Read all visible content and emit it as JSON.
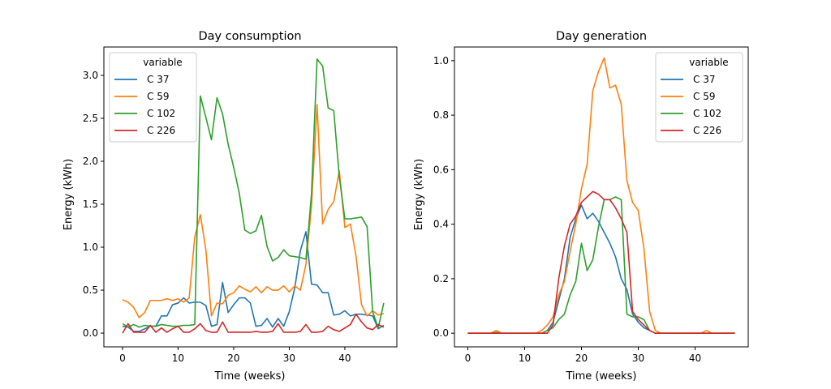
{
  "chart_data": [
    {
      "type": "line",
      "title": "Day consumption",
      "xlabel": "Time (weeks)",
      "ylabel": "Energy (kWh)",
      "xlim": [
        -3.35,
        49.35
      ],
      "ylim": [
        -0.16,
        3.33
      ],
      "xticks": [
        0,
        10,
        20,
        30,
        40
      ],
      "yticks": [
        0.0,
        0.5,
        1.0,
        1.5,
        2.0,
        2.5,
        3.0
      ],
      "ytick_format": 1,
      "legend": {
        "title": "variable",
        "placement": "upper left"
      },
      "grid": false,
      "x": [
        0,
        1,
        2,
        3,
        4,
        5,
        6,
        7,
        8,
        9,
        10,
        11,
        12,
        13,
        14,
        15,
        16,
        17,
        18,
        19,
        20,
        21,
        22,
        23,
        24,
        25,
        26,
        27,
        28,
        29,
        30,
        31,
        32,
        33,
        34,
        35,
        36,
        37,
        38,
        39,
        40,
        41,
        42,
        43,
        44,
        45,
        46,
        47
      ],
      "series": [
        {
          "name": "C 37",
          "color": "#1f77b4",
          "values": [
            0.08,
            0.07,
            0.02,
            0.02,
            0.05,
            0.08,
            0.08,
            0.2,
            0.2,
            0.33,
            0.35,
            0.41,
            0.35,
            0.36,
            0.36,
            0.32,
            0.08,
            0.1,
            0.59,
            0.24,
            0.33,
            0.41,
            0.41,
            0.35,
            0.08,
            0.09,
            0.17,
            0.07,
            0.17,
            0.08,
            0.25,
            0.53,
            0.96,
            1.18,
            0.57,
            0.56,
            0.47,
            0.47,
            0.21,
            0.22,
            0.26,
            0.2,
            0.22,
            0.22,
            0.21,
            0.2,
            0.05,
            0.09
          ]
        },
        {
          "name": "C 59",
          "color": "#ff7f0e",
          "values": [
            0.39,
            0.36,
            0.3,
            0.18,
            0.24,
            0.38,
            0.38,
            0.38,
            0.4,
            0.38,
            0.4,
            0.36,
            0.41,
            1.12,
            1.38,
            0.97,
            0.2,
            0.35,
            0.34,
            0.44,
            0.47,
            0.55,
            0.51,
            0.48,
            0.54,
            0.47,
            0.54,
            0.5,
            0.5,
            0.55,
            0.48,
            0.55,
            0.5,
            0.8,
            1.48,
            2.66,
            1.27,
            1.44,
            1.53,
            1.89,
            1.23,
            1.27,
            0.9,
            0.33,
            0.2,
            0.26,
            0.21,
            0.23
          ]
        },
        {
          "name": "C 102",
          "color": "#2ca02c",
          "values": [
            0.11,
            0.07,
            0.1,
            0.07,
            0.09,
            0.08,
            0.08,
            0.1,
            0.09,
            0.08,
            0.08,
            0.09,
            0.09,
            0.1,
            2.76,
            2.51,
            2.25,
            2.74,
            2.55,
            2.2,
            1.93,
            1.63,
            1.2,
            1.16,
            1.19,
            1.37,
            1.01,
            0.84,
            0.88,
            0.97,
            0.9,
            0.89,
            0.88,
            0.86,
            1.62,
            3.19,
            3.11,
            2.62,
            2.59,
            1.82,
            1.33,
            1.33,
            1.34,
            1.35,
            1.24,
            0.25,
            0.06,
            0.35
          ]
        },
        {
          "name": "C 226",
          "color": "#d62728",
          "values": [
            0.0,
            0.11,
            0.01,
            0.01,
            0.01,
            0.09,
            0.01,
            0.06,
            0.01,
            0.05,
            0.08,
            0.01,
            0.01,
            0.05,
            0.11,
            0.03,
            0.01,
            0.01,
            0.13,
            0.01,
            0.01,
            0.01,
            0.01,
            0.01,
            0.02,
            0.01,
            0.01,
            0.02,
            0.11,
            0.01,
            0.01,
            0.01,
            0.02,
            0.1,
            0.01,
            0.01,
            0.02,
            0.08,
            0.04,
            0.02,
            0.06,
            0.1,
            0.22,
            0.13,
            0.06,
            0.04,
            0.1,
            0.07
          ]
        }
      ]
    },
    {
      "type": "line",
      "title": "Day generation",
      "xlabel": "Time (weeks)",
      "ylabel": "Energy (kWh)",
      "xlim": [
        -2.35,
        49.35
      ],
      "ylim": [
        -0.05,
        1.05
      ],
      "xticks": [
        0,
        10,
        20,
        30,
        40
      ],
      "yticks": [
        0.0,
        0.2,
        0.4,
        0.6,
        0.8,
        1.0
      ],
      "ytick_format": 1,
      "legend": {
        "title": "variable",
        "placement": "upper right"
      },
      "grid": false,
      "x": [
        0,
        1,
        2,
        3,
        4,
        5,
        6,
        7,
        8,
        9,
        10,
        11,
        12,
        13,
        14,
        15,
        16,
        17,
        18,
        19,
        20,
        21,
        22,
        23,
        24,
        25,
        26,
        27,
        28,
        29,
        30,
        31,
        32,
        33,
        34,
        35,
        36,
        37,
        38,
        39,
        40,
        41,
        42,
        43,
        44,
        45,
        46,
        47
      ],
      "series": [
        {
          "name": "C 37",
          "color": "#1f77b4",
          "values": [
            0,
            0,
            0,
            0,
            0,
            0.003,
            0,
            0,
            0,
            0,
            0,
            0,
            0,
            0,
            0.01,
            0.04,
            0.12,
            0.2,
            0.35,
            0.42,
            0.47,
            0.42,
            0.44,
            0.41,
            0.37,
            0.33,
            0.28,
            0.2,
            0.16,
            0.07,
            0.04,
            0.02,
            0.01,
            0,
            0,
            0,
            0,
            0,
            0,
            0,
            0,
            0,
            0,
            0,
            0,
            0,
            0,
            0
          ]
        },
        {
          "name": "C 59",
          "color": "#ff7f0e",
          "values": [
            0,
            0,
            0,
            0,
            0,
            0.01,
            0,
            0,
            0,
            0,
            0,
            0,
            0,
            0.01,
            0.03,
            0.06,
            0.14,
            0.19,
            0.3,
            0.4,
            0.53,
            0.62,
            0.89,
            0.96,
            1.01,
            0.9,
            0.91,
            0.84,
            0.56,
            0.48,
            0.45,
            0.31,
            0.08,
            0.01,
            0,
            0,
            0,
            0,
            0,
            0,
            0,
            0,
            0.01,
            0,
            0,
            0,
            0,
            0
          ]
        },
        {
          "name": "C 102",
          "color": "#2ca02c",
          "values": [
            0,
            0,
            0,
            0,
            0,
            0.003,
            0,
            0,
            0,
            0,
            0,
            0,
            0,
            0,
            0.01,
            0.02,
            0.05,
            0.07,
            0.14,
            0.19,
            0.33,
            0.23,
            0.27,
            0.39,
            0.49,
            0.49,
            0.5,
            0.49,
            0.07,
            0.06,
            0.06,
            0.05,
            0.01,
            0,
            0,
            0,
            0,
            0,
            0,
            0,
            0,
            0,
            0,
            0,
            0,
            0,
            0,
            0
          ]
        },
        {
          "name": "C 226",
          "color": "#d62728",
          "values": [
            0,
            0,
            0,
            0,
            0,
            0,
            0,
            0,
            0,
            0,
            0,
            0,
            0,
            0,
            0,
            0.03,
            0.2,
            0.32,
            0.4,
            0.43,
            0.48,
            0.5,
            0.52,
            0.51,
            0.49,
            0.49,
            0.46,
            0.42,
            0.37,
            0.08,
            0.05,
            0.03,
            0.01,
            0,
            0,
            0,
            0,
            0,
            0,
            0,
            0,
            0,
            0,
            0,
            0,
            0,
            0,
            0
          ]
        }
      ]
    }
  ]
}
